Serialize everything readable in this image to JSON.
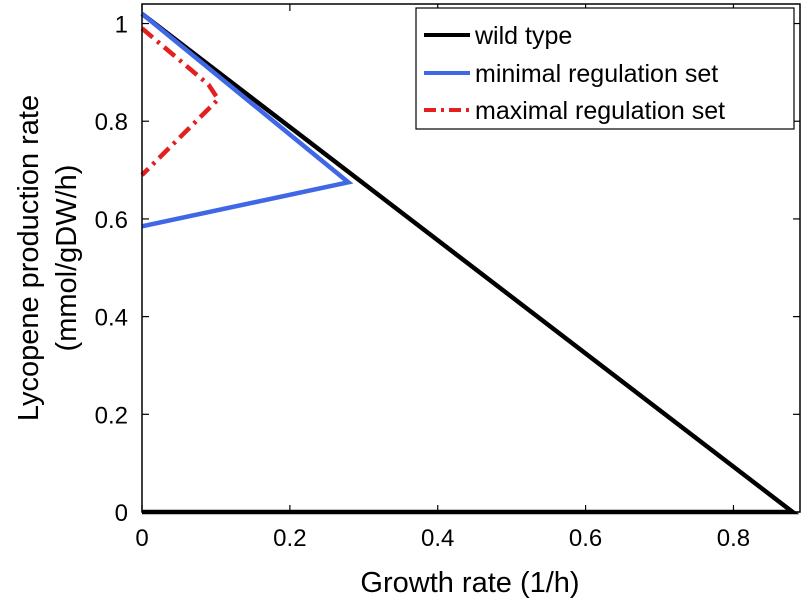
{
  "chart_data": {
    "type": "line",
    "title": "",
    "xlabel": "Growth rate (1/h)",
    "ylabel_line1": "Lycopene production rate",
    "ylabel_line2": "(mmol/gDW/h)",
    "xlim": [
      0,
      0.89
    ],
    "ylim": [
      0,
      1.04
    ],
    "xticks": [
      0,
      0.2,
      0.4,
      0.6,
      0.8
    ],
    "xtick_labels": [
      "0",
      "0.2",
      "0.4",
      "0.6",
      "0.8"
    ],
    "yticks": [
      0,
      0.2,
      0.4,
      0.6,
      0.8,
      1
    ],
    "ytick_labels": [
      "0",
      "0.2",
      "0.4",
      "0.6",
      "0.8",
      "1"
    ],
    "grid": false,
    "legend_position": "top-right",
    "series": [
      {
        "name": "wild type",
        "color": "#000000",
        "style": "solid",
        "x": [
          0,
          0.88,
          0
        ],
        "y": [
          1.02,
          0,
          0
        ]
      },
      {
        "name": "minimal regulation set",
        "color": "#3f67e6",
        "style": "solid",
        "x": [
          0,
          0.279,
          0
        ],
        "y": [
          1.02,
          0.675,
          0.585
        ]
      },
      {
        "name": "maximal regulation set",
        "color": "#e31f1f",
        "style": "dashdot",
        "x": [
          0,
          0.09,
          0.103,
          0
        ],
        "y": [
          0.99,
          0.875,
          0.845,
          0.69
        ]
      }
    ]
  }
}
